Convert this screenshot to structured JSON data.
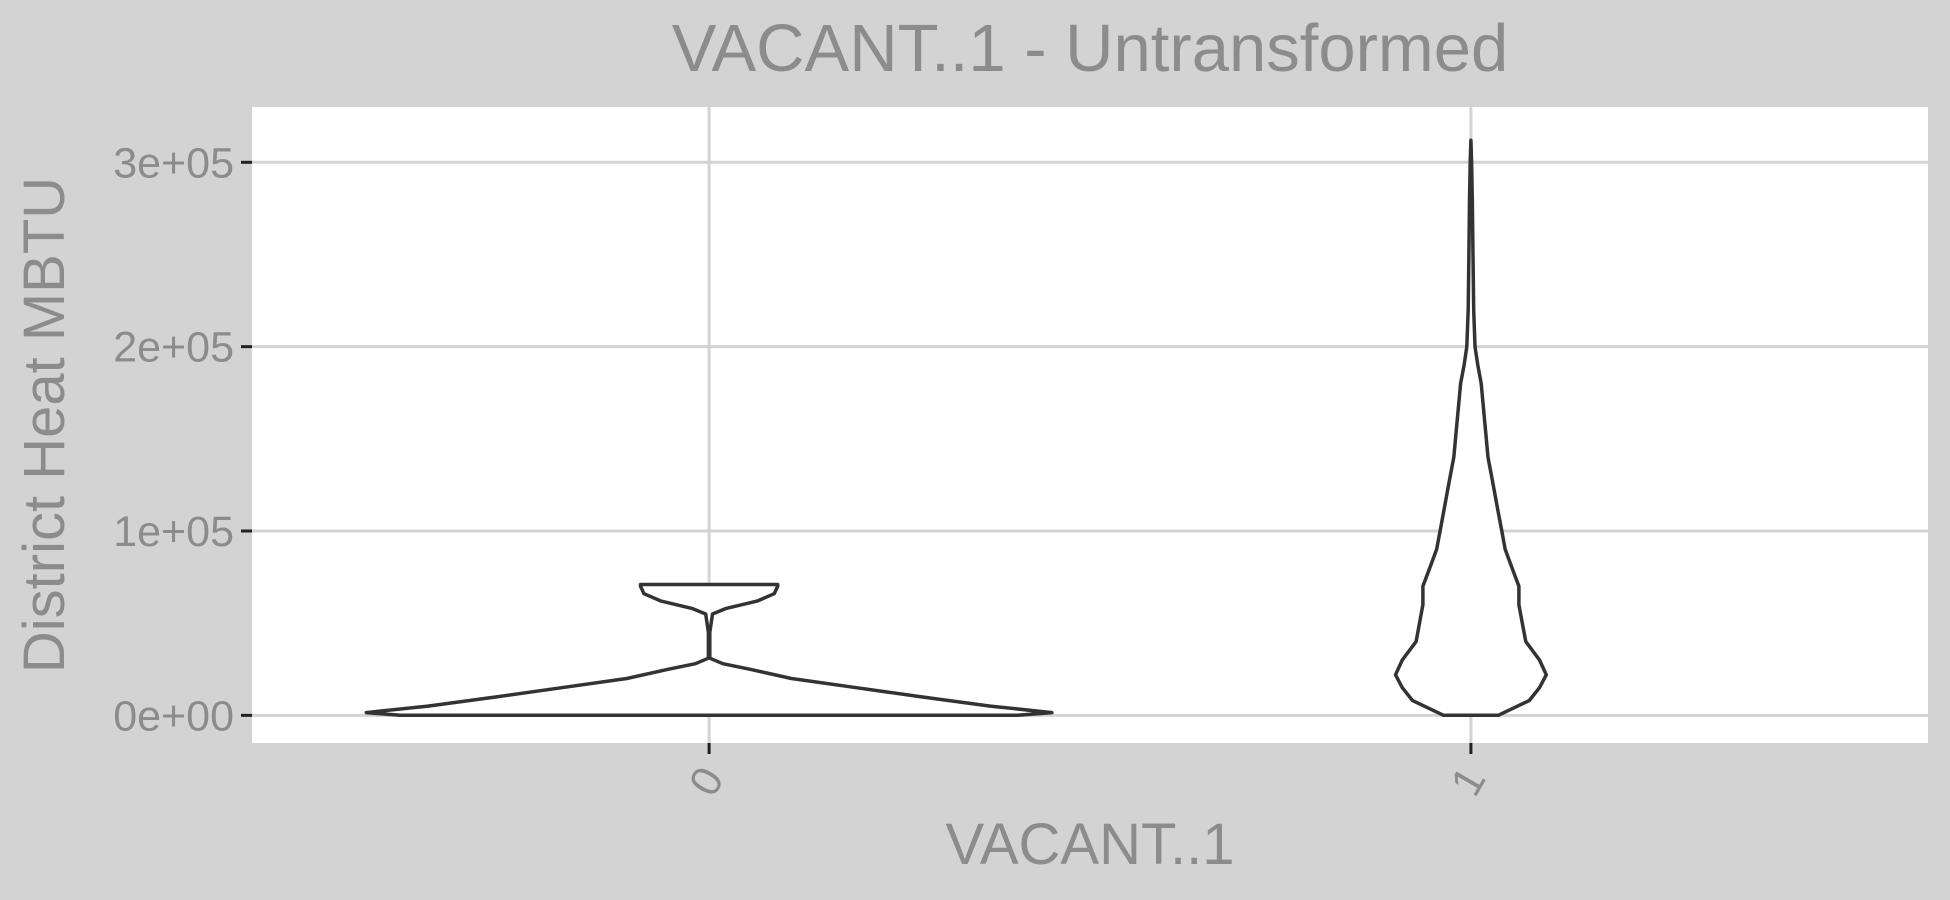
{
  "chart_data": {
    "type": "violin",
    "title": "VACANT..1 - Untransformed",
    "xlabel": "VACANT..1",
    "ylabel": "District Heat MBTU",
    "categories": [
      "0",
      "1"
    ],
    "ylim": [
      -15000,
      330000
    ],
    "y_ticks": [
      {
        "value": 0,
        "label": "0e+00"
      },
      {
        "value": 100000,
        "label": "1e+05"
      },
      {
        "value": 200000,
        "label": "2e+05"
      },
      {
        "value": 300000,
        "label": "3e+05"
      }
    ],
    "grid": true,
    "legend": "none",
    "series": [
      {
        "category": "0",
        "density_profile": [
          {
            "y": 0,
            "w": 0.9
          },
          {
            "y": 1500,
            "w": 1.0
          },
          {
            "y": 5000,
            "w": 0.82
          },
          {
            "y": 10000,
            "w": 0.62
          },
          {
            "y": 15000,
            "w": 0.43
          },
          {
            "y": 20000,
            "w": 0.24
          },
          {
            "y": 25000,
            "w": 0.12
          },
          {
            "y": 28000,
            "w": 0.04
          },
          {
            "y": 31000,
            "w": 0.002
          },
          {
            "y": 45000,
            "w": 0.002
          },
          {
            "y": 55000,
            "w": 0.01
          },
          {
            "y": 58000,
            "w": 0.05
          },
          {
            "y": 62000,
            "w": 0.14
          },
          {
            "y": 66000,
            "w": 0.19
          },
          {
            "y": 70000,
            "w": 0.2
          },
          {
            "y": 71000,
            "w": 0.2
          }
        ]
      },
      {
        "category": "1",
        "density_profile": [
          {
            "y": 0,
            "w": 0.08
          },
          {
            "y": 8000,
            "w": 0.17
          },
          {
            "y": 15000,
            "w": 0.2
          },
          {
            "y": 22000,
            "w": 0.22
          },
          {
            "y": 30000,
            "w": 0.2
          },
          {
            "y": 40000,
            "w": 0.16
          },
          {
            "y": 50000,
            "w": 0.15
          },
          {
            "y": 60000,
            "w": 0.14
          },
          {
            "y": 70000,
            "w": 0.14
          },
          {
            "y": 80000,
            "w": 0.12
          },
          {
            "y": 90000,
            "w": 0.1
          },
          {
            "y": 100000,
            "w": 0.09
          },
          {
            "y": 110000,
            "w": 0.08
          },
          {
            "y": 120000,
            "w": 0.07
          },
          {
            "y": 130000,
            "w": 0.06
          },
          {
            "y": 140000,
            "w": 0.05
          },
          {
            "y": 150000,
            "w": 0.045
          },
          {
            "y": 160000,
            "w": 0.04
          },
          {
            "y": 170000,
            "w": 0.035
          },
          {
            "y": 180000,
            "w": 0.03
          },
          {
            "y": 190000,
            "w": 0.02
          },
          {
            "y": 200000,
            "w": 0.012
          },
          {
            "y": 220000,
            "w": 0.008
          },
          {
            "y": 250000,
            "w": 0.006
          },
          {
            "y": 280000,
            "w": 0.004
          },
          {
            "y": 300000,
            "w": 0.002
          },
          {
            "y": 312000,
            "w": 0.0
          }
        ]
      }
    ]
  }
}
